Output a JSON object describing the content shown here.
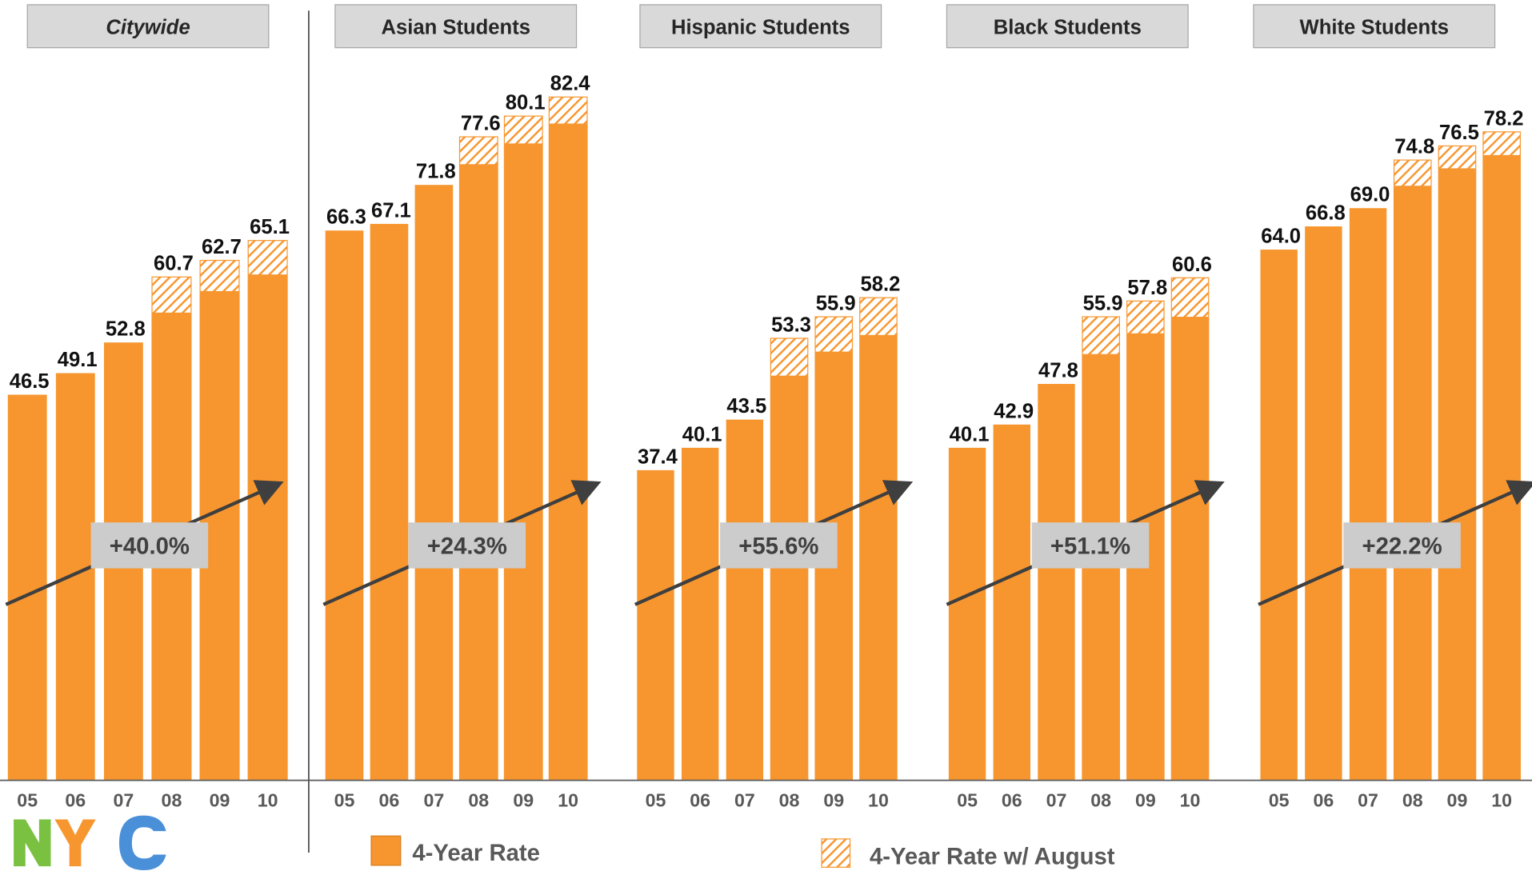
{
  "chart_data": {
    "type": "bar",
    "categories": [
      "05",
      "06",
      "07",
      "08",
      "09",
      "10"
    ],
    "ylim": [
      0,
      94
    ],
    "series": [
      {
        "name": "4-Year Rate",
        "color": "#f7962f"
      },
      {
        "name": "4-Year Rate w/ August",
        "color": "#f7962f",
        "pattern": "hatch"
      }
    ],
    "panels": [
      {
        "title": "Citywide",
        "annotation": "+40.0%",
        "values": [
          [
            46.5,
            49.1,
            52.8,
            56.4,
            59.0,
            61.0
          ],
          [
            null,
            null,
            null,
            60.7,
            62.7,
            65.1
          ]
        ],
        "value_labels": [
          [
            "46.5",
            "49.1",
            "52.8",
            null,
            null,
            null
          ],
          [
            null,
            null,
            null,
            "60.7",
            "62.7",
            "65.1"
          ]
        ]
      },
      {
        "title": "Asian Students",
        "annotation": "+24.3%",
        "values": [
          [
            66.3,
            67.1,
            71.8,
            74.3,
            76.8,
            79.2
          ],
          [
            null,
            null,
            null,
            77.6,
            80.1,
            82.4
          ]
        ],
        "value_labels": [
          [
            "66.3",
            "67.1",
            "71.8",
            null,
            null,
            null
          ],
          [
            null,
            null,
            null,
            "77.6",
            "80.1",
            "82.4"
          ]
        ]
      },
      {
        "title": "Hispanic Students",
        "annotation": "+55.6%",
        "values": [
          [
            37.4,
            40.1,
            43.5,
            48.8,
            51.7,
            53.7
          ],
          [
            null,
            null,
            null,
            53.3,
            55.9,
            58.2
          ]
        ],
        "value_labels": [
          [
            "37.4",
            "40.1",
            "43.5",
            null,
            null,
            null
          ],
          [
            null,
            null,
            null,
            "53.3",
            "55.9",
            "58.2"
          ]
        ]
      },
      {
        "title": "Black Students",
        "annotation": "+51.1%",
        "values": [
          [
            40.1,
            42.9,
            47.8,
            51.4,
            53.9,
            55.9
          ],
          [
            null,
            null,
            null,
            55.9,
            57.8,
            60.6
          ]
        ],
        "value_labels": [
          [
            "40.1",
            "42.9",
            "47.8",
            null,
            null,
            null
          ],
          [
            null,
            null,
            null,
            "55.9",
            "57.8",
            "60.6"
          ]
        ]
      },
      {
        "title": "White Students",
        "annotation": "+22.2%",
        "values": [
          [
            64.0,
            66.8,
            69.0,
            71.7,
            73.8,
            75.4
          ],
          [
            null,
            null,
            null,
            74.8,
            76.5,
            78.2
          ]
        ],
        "value_labels": [
          [
            "64.0",
            "66.8",
            "69.0",
            null,
            null,
            null
          ],
          [
            null,
            null,
            null,
            "74.8",
            "76.5",
            "78.2"
          ]
        ]
      }
    ]
  }
}
